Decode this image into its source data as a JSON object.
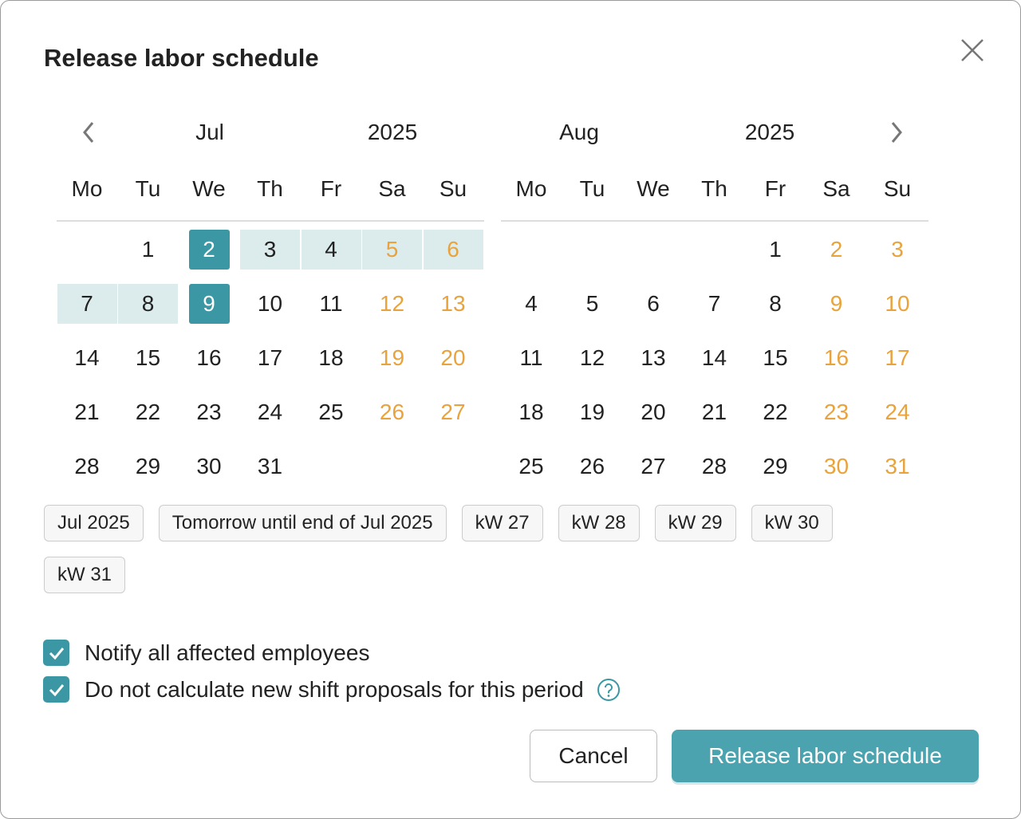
{
  "dialog": {
    "title": "Release labor schedule",
    "calendars": [
      {
        "month": "Jul",
        "year": 2025,
        "weekdays": [
          "Mo",
          "Tu",
          "We",
          "Th",
          "Fr",
          "Sa",
          "Su"
        ],
        "weeks": [
          [
            null,
            1,
            2,
            3,
            4,
            5,
            6
          ],
          [
            7,
            8,
            9,
            10,
            11,
            12,
            13
          ],
          [
            14,
            15,
            16,
            17,
            18,
            19,
            20
          ],
          [
            21,
            22,
            23,
            24,
            25,
            26,
            27
          ],
          [
            28,
            29,
            30,
            31,
            null,
            null,
            null
          ]
        ],
        "range": {
          "start": 2,
          "end": 9
        }
      },
      {
        "month": "Aug",
        "year": 2025,
        "weekdays": [
          "Mo",
          "Tu",
          "We",
          "Th",
          "Fr",
          "Sa",
          "Su"
        ],
        "weeks": [
          [
            null,
            null,
            null,
            null,
            1,
            2,
            3
          ],
          [
            4,
            5,
            6,
            7,
            8,
            9,
            10
          ],
          [
            11,
            12,
            13,
            14,
            15,
            16,
            17
          ],
          [
            18,
            19,
            20,
            21,
            22,
            23,
            24
          ],
          [
            25,
            26,
            27,
            28,
            29,
            30,
            31
          ]
        ]
      }
    ],
    "weekend_color": "#e8a33c",
    "range_color": "#dcebeb",
    "endpoint_color": "#3a97a3",
    "quick_ranges": [
      "Jul 2025",
      "Tomorrow until end of Jul 2025",
      "kW 27",
      "kW 28",
      "kW 29",
      "kW 30",
      "kW 31"
    ],
    "options": [
      {
        "label": "Notify all affected employees",
        "checked": true
      },
      {
        "label": "Do not calculate new shift proposals for this period",
        "checked": true,
        "help": true
      }
    ],
    "actions": {
      "cancel": "Cancel",
      "confirm": "Release labor schedule"
    }
  }
}
